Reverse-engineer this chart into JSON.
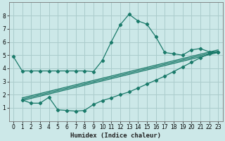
{
  "xlabel": "Humidex (Indice chaleur)",
  "bg_color": "#cce8e8",
  "grid_color": "#aacccc",
  "line_color": "#1a7a6a",
  "xlim": [
    -0.5,
    23.5
  ],
  "ylim": [
    0.0,
    9.0
  ],
  "xticks": [
    0,
    1,
    2,
    3,
    4,
    5,
    6,
    7,
    8,
    9,
    10,
    11,
    12,
    13,
    14,
    15,
    16,
    17,
    18,
    19,
    20,
    21,
    22,
    23
  ],
  "yticks": [
    1,
    2,
    3,
    4,
    5,
    6,
    7,
    8
  ],
  "line1_x": [
    0,
    1,
    2,
    3,
    4,
    5,
    6,
    7,
    8,
    9,
    10,
    11,
    12,
    13,
    14,
    15,
    16,
    17,
    18,
    19,
    20,
    21,
    22,
    23
  ],
  "line1_y": [
    4.9,
    3.8,
    3.8,
    3.8,
    3.8,
    3.8,
    3.8,
    3.8,
    3.8,
    3.75,
    4.6,
    6.0,
    7.3,
    8.1,
    7.6,
    7.35,
    6.4,
    5.2,
    5.1,
    5.0,
    5.4,
    5.5,
    5.25,
    5.25
  ],
  "line2_x": [
    1,
    2,
    3,
    4,
    5,
    6,
    7,
    8,
    9,
    10,
    11,
    12,
    13,
    14,
    15,
    16,
    17,
    18,
    19,
    20,
    21,
    22,
    23
  ],
  "line2_y": [
    1.6,
    1.35,
    1.35,
    1.8,
    0.85,
    0.8,
    0.75,
    0.8,
    1.25,
    1.55,
    1.75,
    2.0,
    2.2,
    2.5,
    2.8,
    3.1,
    3.4,
    3.75,
    4.1,
    4.45,
    4.8,
    5.1,
    5.25
  ],
  "line3_x": [
    1,
    23
  ],
  "line3_y": [
    1.55,
    5.2
  ],
  "line4_x": [
    1,
    23
  ],
  "line4_y": [
    1.65,
    5.3
  ],
  "line5_x": [
    1,
    23
  ],
  "line5_y": [
    1.75,
    5.4
  ]
}
